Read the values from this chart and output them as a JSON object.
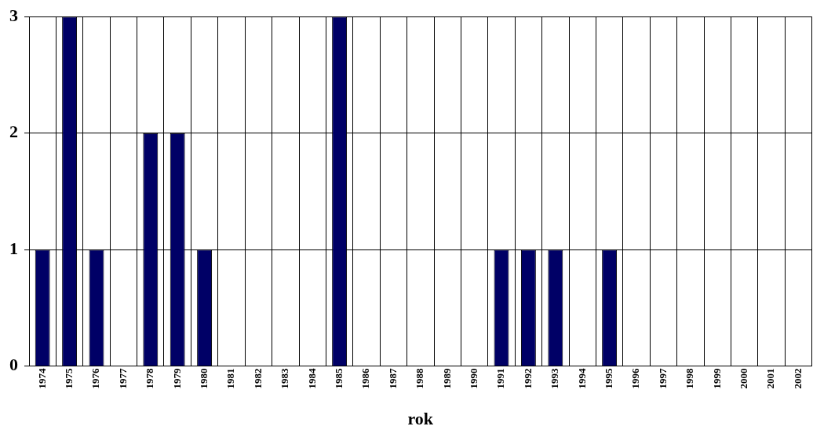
{
  "chart_data": {
    "type": "bar",
    "xlabel": "rok",
    "categories": [
      "1974",
      "1975",
      "1976",
      "1977",
      "1978",
      "1979",
      "1980",
      "1981",
      "1982",
      "1983",
      "1984",
      "1985",
      "1986",
      "1987",
      "1988",
      "1989",
      "1990",
      "1991",
      "1992",
      "1993",
      "1994",
      "1995",
      "1996",
      "1997",
      "1998",
      "1999",
      "2000",
      "2001",
      "2002"
    ],
    "values": [
      1,
      3,
      1,
      0,
      2,
      2,
      1,
      0,
      0,
      0,
      0,
      3,
      0,
      0,
      0,
      0,
      0,
      1,
      1,
      1,
      0,
      1,
      0,
      0,
      0,
      0,
      0,
      0,
      0
    ],
    "color": "#000066",
    "ylim": [
      0,
      3
    ],
    "yticks": [
      0,
      1,
      2,
      3
    ],
    "grid": true
  }
}
